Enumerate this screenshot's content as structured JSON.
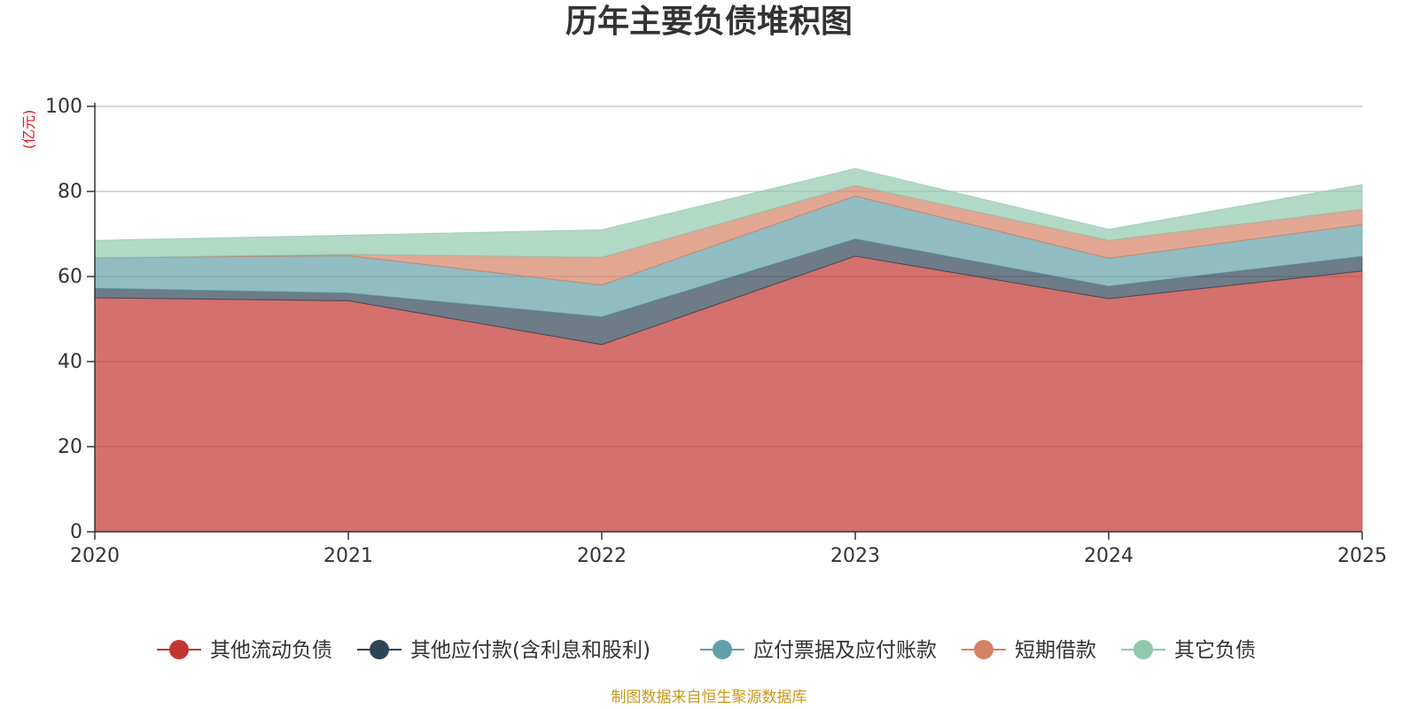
{
  "chart_data": {
    "type": "area",
    "stacked": true,
    "title": "历年主要负债堆积图",
    "unit_label": "(亿元)",
    "x": [
      "2020",
      "2021",
      "2022",
      "2023",
      "2024",
      "2025"
    ],
    "ylim": [
      0,
      100
    ],
    "yticks": [
      0,
      20,
      40,
      60,
      80,
      100
    ],
    "grid": true,
    "legend_position": "bottom",
    "series": [
      {
        "name": "其他流动负债",
        "color": "#c23531",
        "values": [
          55.0,
          54.3,
          44.0,
          64.8,
          54.8,
          61.3
        ]
      },
      {
        "name": "其他应付款(含利息和股利)",
        "color": "#2f4554",
        "values": [
          2.2,
          1.8,
          6.5,
          4.0,
          2.9,
          3.4
        ]
      },
      {
        "name": "应付票据及应付账款",
        "color": "#61a0a8",
        "values": [
          7.2,
          8.8,
          7.5,
          10.1,
          6.6,
          7.5
        ]
      },
      {
        "name": "短期借款",
        "color": "#d48265",
        "values": [
          0.0,
          0.3,
          6.5,
          2.5,
          4.2,
          3.6
        ]
      },
      {
        "name": "其它负债",
        "color": "#91c7ae",
        "values": [
          4.1,
          4.5,
          6.5,
          4.0,
          2.6,
          5.8
        ]
      }
    ]
  },
  "footer": {
    "source": "制图数据来自恒生聚源数据库"
  }
}
